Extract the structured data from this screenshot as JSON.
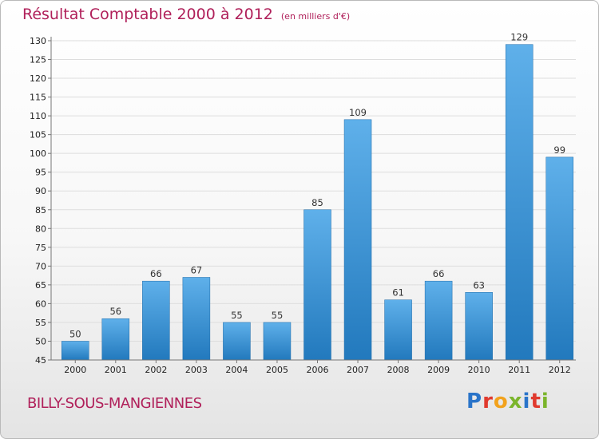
{
  "header": {
    "title": "Résultat Comptable 2000 à 2012",
    "unit": "(en milliers d'€)"
  },
  "footer": {
    "commune": "BILLY-SOUS-MANGIENNES",
    "logo": "Proxiti",
    "logo_colors": [
      "#2a74c9",
      "#e03a2e",
      "#f2a21c",
      "#7bb52c",
      "#2a74c9",
      "#e03a2e",
      "#7bb52c"
    ]
  },
  "colors": {
    "bar_top": "#5fb0ea",
    "bar_bottom": "#2279bd",
    "axis": "#777777",
    "grid": "#dddddd"
  },
  "chart_data": {
    "type": "bar",
    "title": "Résultat Comptable 2000 à 2012",
    "xlabel": "",
    "ylabel": "(en milliers d'€)",
    "categories": [
      "2000",
      "2001",
      "2002",
      "2003",
      "2004",
      "2005",
      "2006",
      "2007",
      "2008",
      "2009",
      "2010",
      "2011",
      "2012"
    ],
    "values": [
      50,
      56,
      66,
      67,
      55,
      55,
      85,
      109,
      61,
      66,
      63,
      129,
      99
    ],
    "ylim": [
      45,
      130
    ],
    "ytick_step": 5,
    "grid": true
  }
}
